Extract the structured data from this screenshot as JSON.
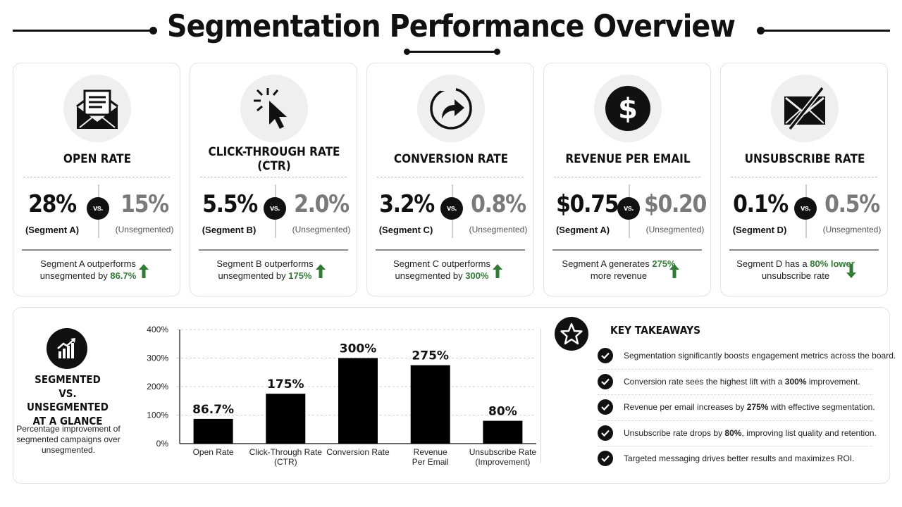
{
  "header": {
    "title": "Segmentation Performance Overview"
  },
  "vs_label": "vs.",
  "cards": [
    {
      "title": "OPEN RATE",
      "icon": "open-envelope-icon",
      "seg_value": "28%",
      "seg_label": "(Segment A)",
      "unseg_value": "15%",
      "unseg_label": "(Unsegmented)",
      "note_pre": "Segment A outperforms unsegmented by ",
      "note_hl": "86.7%",
      "note_post": "",
      "trend": "up"
    },
    {
      "title": "CLICK-THROUGH RATE (CTR)",
      "icon": "cursor-click-icon",
      "seg_value": "5.5%",
      "seg_label": "(Segment B)",
      "unseg_value": "2.0%",
      "unseg_label": "(Unsegmented)",
      "note_pre": "Segment B outperforms unsegmented by ",
      "note_hl": "175%",
      "note_post": "",
      "trend": "up"
    },
    {
      "title": "CONVERSION RATE",
      "icon": "redirect-arrow-icon",
      "seg_value": "3.2%",
      "seg_label": "(Segment C)",
      "unseg_value": "0.8%",
      "unseg_label": "(Unsegmented)",
      "note_pre": "Segment C outperforms unsegmented by ",
      "note_hl": "300%",
      "note_post": "",
      "trend": "up"
    },
    {
      "title": "REVENUE PER EMAIL",
      "icon": "dollar-icon",
      "seg_value": "$0.75",
      "seg_label": "(Segment A)",
      "unseg_value": "$0.20",
      "unseg_label": "(Unsegmented)",
      "note_pre": "Segment A generates ",
      "note_hl": "275%",
      "note_post": " more revenue",
      "trend": "up"
    },
    {
      "title": "UNSUBSCRIBE RATE",
      "icon": "crossed-envelope-icon",
      "seg_value": "0.1%",
      "seg_label": "(Segment D)",
      "unseg_value": "0.5%",
      "unseg_label": "(Unsegmented)",
      "note_pre": "Segment D has a ",
      "note_hl": "80% lower",
      "note_post": " unsubscribe rate",
      "trend": "down"
    }
  ],
  "summary": {
    "icon": "growth-chart-icon",
    "title_lines": [
      "SEGMENTED",
      "VS. UNSEGMENTED",
      "AT A GLANCE"
    ],
    "description": "Percentage improvement of segmented campaigns over unsegmented."
  },
  "chart_data": {
    "type": "bar",
    "categories": [
      "Open Rate",
      "Click-Through Rate (CTR)",
      "Conversion Rate",
      "Revenue Per Email",
      "Unsubscribe Rate (Improvement)"
    ],
    "category_lines": [
      [
        "Open Rate"
      ],
      [
        "Click-Through Rate",
        "(CTR)"
      ],
      [
        "Conversion Rate"
      ],
      [
        "Revenue",
        "Per Email"
      ],
      [
        "Unsubscribe Rate",
        "(Improvement)"
      ]
    ],
    "values": [
      86.7,
      175,
      300,
      275,
      80
    ],
    "data_labels": [
      "86.7%",
      "175%",
      "300%",
      "275%",
      "80%"
    ],
    "title": "",
    "xlabel": "",
    "ylabel": "",
    "ylim": [
      0,
      400
    ],
    "yticks": [
      0,
      100,
      200,
      300,
      400
    ],
    "ytick_labels": [
      "0%",
      "100%",
      "200%",
      "300%",
      "400%"
    ],
    "grid": true,
    "bar_color": "#000000"
  },
  "takeaways": {
    "icon": "star-icon",
    "title": "KEY TAKEAWAYS",
    "items": [
      {
        "pre": "Segmentation significantly boosts engagement metrics across the board.",
        "bold": "",
        "post": ""
      },
      {
        "pre": "Conversion rate sees the highest lift with a ",
        "bold": "300%",
        "post": " improvement."
      },
      {
        "pre": "Revenue per email increases by ",
        "bold": "275%",
        "post": " with effective segmentation."
      },
      {
        "pre": "Unsubscribe rate drops by ",
        "bold": "80%",
        "post": ", improving list quality and retention."
      },
      {
        "pre": "Targeted messaging drives better results and maximizes ROI.",
        "bold": "",
        "post": ""
      }
    ]
  },
  "colors": {
    "accent_green": "#2e7d32",
    "dark": "#111111",
    "muted": "#7a7a7a"
  }
}
